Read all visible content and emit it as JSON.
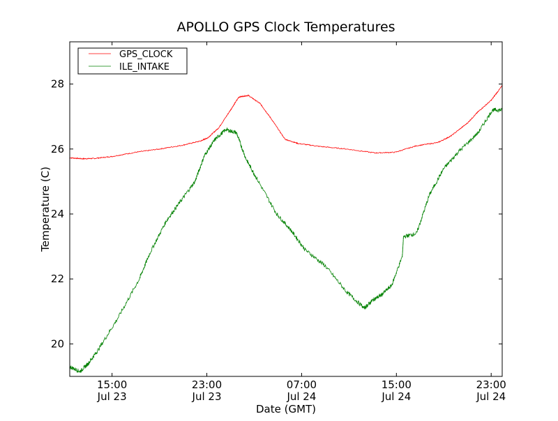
{
  "chart_data": {
    "type": "line",
    "title": "APOLLO GPS Clock Temperatures",
    "xlabel": "Date (GMT)",
    "ylabel": "Temperature (C)",
    "x_units": "hours since Jul 23 00:00 GMT",
    "xlim": [
      11.43,
      47.93
    ],
    "ylim": [
      19.0,
      29.3
    ],
    "grid": false,
    "legend_position": "top-left",
    "xticks": [
      {
        "value": 15,
        "time": "15:00",
        "date": "Jul 23"
      },
      {
        "value": 23,
        "time": "23:00",
        "date": "Jul 23"
      },
      {
        "value": 31,
        "time": "07:00",
        "date": "Jul 24"
      },
      {
        "value": 39,
        "time": "15:00",
        "date": "Jul 24"
      },
      {
        "value": 47,
        "time": "23:00",
        "date": "Jul 24"
      }
    ],
    "yticks": [
      {
        "value": 20,
        "label": "20"
      },
      {
        "value": 22,
        "label": "22"
      },
      {
        "value": 24,
        "label": "24"
      },
      {
        "value": 26,
        "label": "26"
      },
      {
        "value": 28,
        "label": "28"
      }
    ],
    "series": [
      {
        "name": "GPS_CLOCK",
        "color": "#ff0000",
        "x": [
          11.43,
          12.5,
          13.5,
          15,
          17,
          19,
          21,
          22.5,
          23.1,
          24,
          25,
          25.7,
          26.5,
          27.5,
          28.4,
          29.6,
          30.7,
          32.5,
          34.8,
          37.2,
          38.9,
          40.7,
          42.5,
          43.6,
          45,
          45.9,
          47,
          47.93
        ],
        "y": [
          25.73,
          25.7,
          25.71,
          25.77,
          25.9,
          26.0,
          26.12,
          26.25,
          26.35,
          26.65,
          27.2,
          27.6,
          27.65,
          27.4,
          26.95,
          26.3,
          26.17,
          26.08,
          26.0,
          25.88,
          25.9,
          26.1,
          26.2,
          26.4,
          26.8,
          27.15,
          27.5,
          27.95
        ]
      },
      {
        "name": "ILE_INTAKE",
        "color": "#008000",
        "x": [
          11.43,
          12.3,
          13.0,
          13.8,
          15.5,
          17.3,
          18.2,
          19.6,
          20.8,
          22.0,
          22.8,
          23.7,
          24.6,
          25.5,
          26.3,
          27.2,
          28.9,
          30.1,
          31.3,
          33.0,
          34.8,
          36.3,
          37.0,
          37.7,
          38.6,
          39.5,
          39.6,
          40.7,
          41.8,
          43.0,
          44.2,
          45.9,
          47.1,
          47.93
        ],
        "y": [
          19.3,
          19.15,
          19.4,
          19.8,
          20.8,
          22.0,
          22.8,
          23.8,
          24.4,
          25.0,
          25.8,
          26.3,
          26.6,
          26.5,
          25.7,
          25.1,
          24.0,
          23.5,
          22.9,
          22.4,
          21.6,
          21.1,
          21.35,
          21.5,
          21.8,
          22.7,
          23.3,
          23.4,
          24.6,
          25.4,
          25.9,
          26.5,
          27.2,
          27.2
        ]
      }
    ]
  }
}
